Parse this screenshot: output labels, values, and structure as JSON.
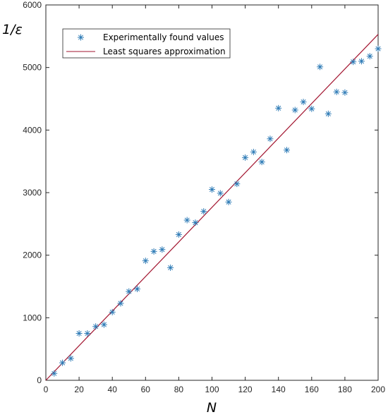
{
  "chart_data": {
    "type": "scatter",
    "title": "",
    "xlabel": "N",
    "ylabel": "1/ε",
    "xlim": [
      0,
      200
    ],
    "ylim": [
      0,
      6000
    ],
    "xticks": [
      "0",
      "20",
      "40",
      "60",
      "80",
      "100",
      "120",
      "140",
      "160",
      "180",
      "200"
    ],
    "yticks": [
      "0",
      "1000",
      "2000",
      "3000",
      "4000",
      "5000",
      "6000"
    ],
    "grid": false,
    "legend_position": "top-left",
    "series": [
      {
        "name": "Experimentally found values",
        "marker": "asterisk",
        "color": "#2E7BB6",
        "x": [
          5,
          10,
          15,
          20,
          25,
          30,
          35,
          40,
          45,
          50,
          55,
          60,
          65,
          70,
          75,
          80,
          85,
          90,
          95,
          100,
          105,
          110,
          115,
          120,
          125,
          130,
          135,
          140,
          145,
          150,
          155,
          160,
          165,
          170,
          175,
          180,
          185,
          190,
          195,
          200
        ],
        "y": [
          110,
          280,
          350,
          750,
          750,
          860,
          890,
          1090,
          1230,
          1420,
          1460,
          1910,
          2060,
          2090,
          1800,
          2330,
          2560,
          2520,
          2700,
          3050,
          2990,
          2850,
          3140,
          3560,
          3650,
          3490,
          3860,
          4350,
          3680,
          4320,
          4450,
          4340,
          5010,
          4260,
          4610,
          4600,
          5090,
          5100,
          5180,
          5300
        ]
      },
      {
        "name": "Least squares approximation",
        "marker": "line",
        "color": "#A2142F",
        "x": [
          0,
          200
        ],
        "y": [
          0,
          5530
        ]
      }
    ]
  }
}
